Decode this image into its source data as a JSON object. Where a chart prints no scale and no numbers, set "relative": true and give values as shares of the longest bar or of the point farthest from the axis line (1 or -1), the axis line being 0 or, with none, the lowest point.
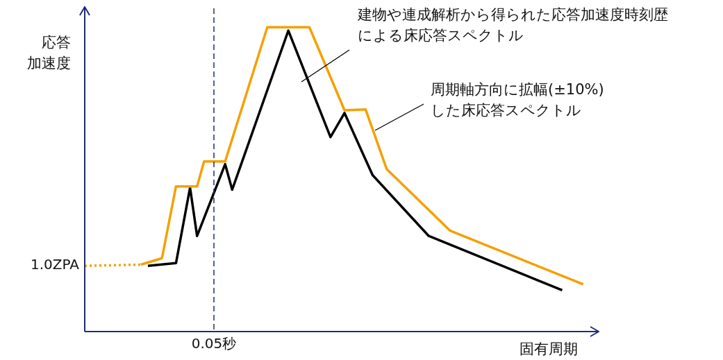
{
  "chart_data": {
    "type": "line",
    "relative": true,
    "xlabel": "固有周期",
    "ylabel": "応答加速度",
    "legend": false,
    "marker": "none",
    "categories": [
      null,
      null,
      null,
      null,
      null,
      null,
      null,
      null,
      null,
      null,
      null,
      null,
      null,
      null,
      null,
      null,
      null,
      null,
      null,
      null,
      null,
      null,
      null,
      null,
      null,
      null,
      null,
      null,
      null,
      null,
      null,
      null,
      null,
      null,
      null,
      null,
      null,
      null,
      null,
      null,
      null,
      null,
      null,
      null,
      null,
      null,
      null,
      null,
      null,
      null,
      null,
      null,
      null,
      null,
      null,
      null,
      null,
      null,
      null,
      null,
      null,
      null,
      null,
      null,
      null,
      null,
      null,
      null,
      null,
      null,
      null,
      null,
      null,
      null
    ],
    "series": [
      {
        "color": "#f5a000",
        "line_style": "dotted",
        "values": [
          0.216,
          null,
          null,
          null,
          null,
          null,
          null,
          null,
          0.22,
          null,
          null,
          null,
          null,
          null,
          null,
          null,
          null,
          null,
          null,
          null,
          null,
          null,
          null,
          null,
          null,
          null,
          null,
          null,
          null,
          null,
          null,
          null,
          null,
          null,
          null,
          null,
          null,
          null,
          null,
          null,
          null,
          null,
          null,
          null,
          null,
          null,
          null,
          null,
          null,
          null,
          null,
          null,
          null,
          null,
          null,
          null,
          null,
          null,
          null,
          null,
          null,
          null,
          null,
          null,
          null,
          null,
          null,
          null,
          null,
          null,
          null,
          null,
          null,
          null
        ]
      },
      {
        "color": "#f5a000",
        "line_style": "solid",
        "values": [
          null,
          null,
          null,
          null,
          null,
          null,
          null,
          null,
          0.22,
          null,
          null,
          0.241,
          null,
          0.477,
          null,
          null,
          0.477,
          0.559,
          null,
          null,
          0.559,
          null,
          null,
          null,
          null,
          null,
          1,
          null,
          null,
          null,
          null,
          null,
          1,
          null,
          null,
          null,
          null,
          0.727,
          null,
          null,
          0.73,
          null,
          null,
          0.534,
          null,
          null,
          null,
          null,
          null,
          null,
          null,
          null,
          0.332,
          null,
          null,
          null,
          null,
          null,
          null,
          null,
          null,
          null,
          null,
          null,
          null,
          null,
          null,
          null,
          null,
          null,
          null,
          0.155,
          null,
          null
        ]
      },
      {
        "color": "#000000",
        "line_style": "solid",
        "values": [
          null,
          null,
          null,
          null,
          null,
          null,
          null,
          null,
          null,
          0.216,
          null,
          null,
          null,
          0.225,
          null,
          0.473,
          0.314,
          null,
          null,
          null,
          0.55,
          0.466,
          null,
          null,
          null,
          null,
          null,
          null,
          null,
          0.989,
          null,
          null,
          null,
          null,
          null,
          0.639,
          null,
          0.718,
          null,
          null,
          null,
          0.514,
          null,
          null,
          null,
          null,
          null,
          null,
          null,
          0.314,
          null,
          null,
          null,
          null,
          null,
          null,
          null,
          null,
          null,
          null,
          null,
          null,
          null,
          null,
          null,
          null,
          null,
          null,
          0.136,
          null,
          null,
          null,
          null,
          null
        ]
      }
    ],
    "annotations": [
      "建物や連成解析から得られた応答加速度時刻歴による床応答スペクトル",
      "周期軸方向に拡幅(±10%)した床応答スペクトル",
      "1.0ZPA",
      "0.05秒"
    ]
  }
}
